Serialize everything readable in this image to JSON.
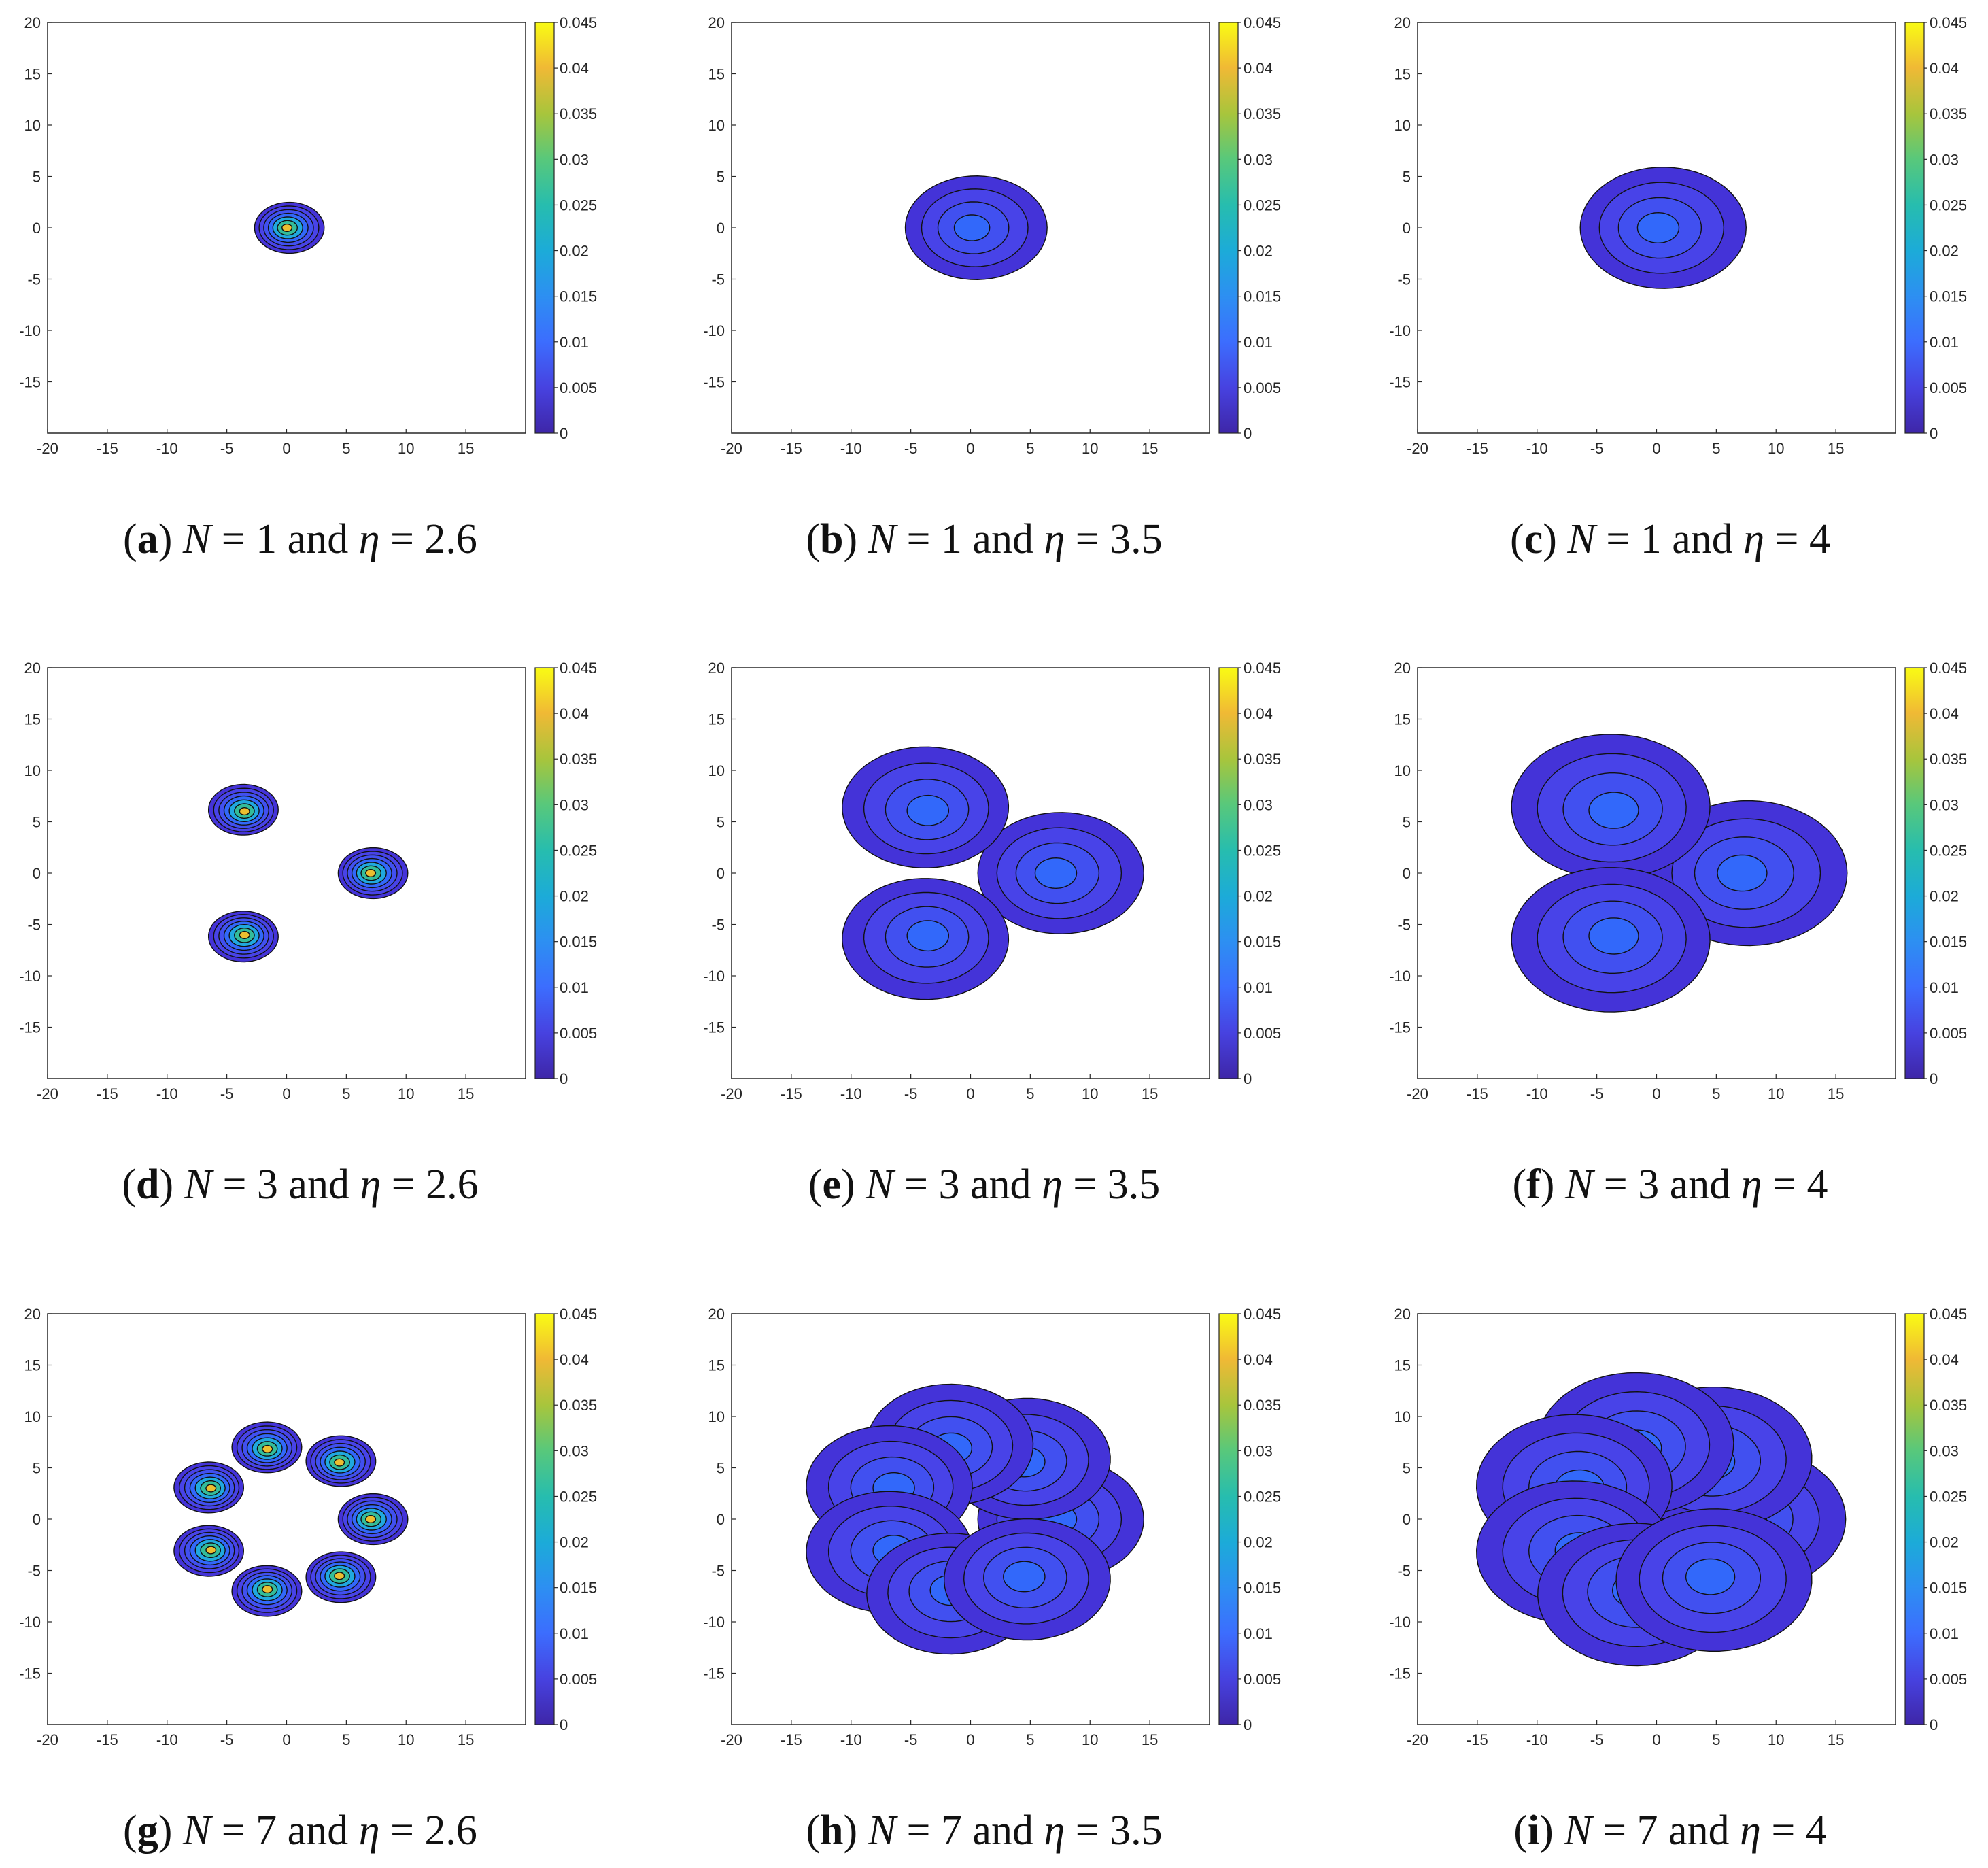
{
  "figure": {
    "type": "contour-grid",
    "colorbar": {
      "ticks": [
        "0",
        "0.005",
        "0.01",
        "0.015",
        "0.02",
        "0.025",
        "0.03",
        "0.035",
        "0.04",
        "0.045"
      ],
      "colormap": [
        "#3e26a8",
        "#4742e0",
        "#3c6dfe",
        "#2d8ff2",
        "#1cabd8",
        "#27bdae",
        "#58c87b",
        "#a8c53c",
        "#f0b935",
        "#f9fb14"
      ]
    },
    "contour_colors": [
      "#4433d8",
      "#4843e8",
      "#4150f0",
      "#3268fa",
      "#20a8df",
      "#33bc9a",
      "#ecbe30"
    ]
  },
  "chart_data": [
    {
      "type": "contour",
      "label": "a",
      "N": "1",
      "eta": "2.6",
      "xlim": [
        -20,
        20
      ],
      "ylim": [
        -20,
        20
      ],
      "xticks": [
        "-20",
        "-15",
        "-10",
        "-5",
        "0",
        "5",
        "10",
        "15"
      ],
      "yticks": [
        "20",
        "15",
        "10",
        "5",
        "0",
        "-5",
        "-10",
        "-15"
      ],
      "clim": [
        0,
        0.045
      ],
      "blob_radius": 2.6,
      "blob_levels": 7,
      "centers": [
        [
          0,
          0
        ]
      ]
    },
    {
      "type": "contour",
      "label": "b",
      "N": "1",
      "eta": "3.5",
      "xlim": [
        -20,
        20
      ],
      "ylim": [
        -20,
        20
      ],
      "xticks": [
        "-20",
        "-15",
        "-10",
        "-5",
        "0",
        "5",
        "10",
        "15"
      ],
      "yticks": [
        "20",
        "15",
        "10",
        "5",
        "0",
        "-5",
        "-10",
        "-15"
      ],
      "clim": [
        0,
        0.045
      ],
      "blob_radius": 5.3,
      "blob_levels": 4,
      "centers": [
        [
          0,
          0
        ]
      ]
    },
    {
      "type": "contour",
      "label": "c",
      "N": "1",
      "eta": "4",
      "xlim": [
        -20,
        20
      ],
      "ylim": [
        -20,
        20
      ],
      "xticks": [
        "-20",
        "-15",
        "-10",
        "-5",
        "0",
        "5",
        "10",
        "15"
      ],
      "yticks": [
        "20",
        "15",
        "10",
        "5",
        "0",
        "-5",
        "-10",
        "-15"
      ],
      "clim": [
        0,
        0.045
      ],
      "blob_radius": 6.2,
      "blob_levels": 4,
      "centers": [
        [
          0,
          0
        ]
      ]
    },
    {
      "type": "contour",
      "label": "d",
      "N": "3",
      "eta": "2.6",
      "xlim": [
        -20,
        20
      ],
      "ylim": [
        -20,
        20
      ],
      "xticks": [
        "-20",
        "-15",
        "-10",
        "-5",
        "0",
        "5",
        "10",
        "15"
      ],
      "yticks": [
        "20",
        "15",
        "10",
        "5",
        "0",
        "-5",
        "-10",
        "-15"
      ],
      "clim": [
        0,
        0.045
      ],
      "blob_radius": 2.6,
      "blob_levels": 7,
      "centers": [
        [
          7,
          0
        ],
        [
          -3.5,
          6
        ],
        [
          -3.5,
          -6
        ]
      ]
    },
    {
      "type": "contour",
      "label": "e",
      "N": "3",
      "eta": "3.5",
      "xlim": [
        -20,
        20
      ],
      "ylim": [
        -20,
        20
      ],
      "xticks": [
        "-20",
        "-15",
        "-10",
        "-5",
        "0",
        "5",
        "10",
        "15"
      ],
      "yticks": [
        "20",
        "15",
        "10",
        "5",
        "0",
        "-5",
        "-10",
        "-15"
      ],
      "clim": [
        0,
        0.045
      ],
      "blob_radius": 6.2,
      "blob_levels": 4,
      "centers": [
        [
          7,
          0
        ],
        [
          -3.5,
          6
        ],
        [
          -3.5,
          -6
        ]
      ]
    },
    {
      "type": "contour",
      "label": "f",
      "N": "3",
      "eta": "4",
      "xlim": [
        -20,
        20
      ],
      "ylim": [
        -20,
        20
      ],
      "xticks": [
        "-20",
        "-15",
        "-10",
        "-5",
        "0",
        "5",
        "10",
        "15"
      ],
      "yticks": [
        "20",
        "15",
        "10",
        "5",
        "0",
        "-5",
        "-10",
        "-15"
      ],
      "clim": [
        0,
        0.045
      ],
      "blob_radius": 7.4,
      "blob_levels": 4,
      "centers": [
        [
          7,
          0
        ],
        [
          -3.5,
          6
        ],
        [
          -3.5,
          -6
        ]
      ]
    },
    {
      "type": "contour",
      "label": "g",
      "N": "7",
      "eta": "2.6",
      "xlim": [
        -20,
        20
      ],
      "ylim": [
        -20,
        20
      ],
      "xticks": [
        "-20",
        "-15",
        "-10",
        "-5",
        "0",
        "5",
        "10",
        "15"
      ],
      "yticks": [
        "20",
        "15",
        "10",
        "5",
        "0",
        "-5",
        "-10",
        "-15"
      ],
      "clim": [
        0,
        0.045
      ],
      "blob_radius": 2.6,
      "blob_levels": 7,
      "centers": [
        [
          7,
          0
        ],
        [
          4.4,
          5.5
        ],
        [
          -1.6,
          6.8
        ],
        [
          -6.3,
          3
        ],
        [
          -6.3,
          -3
        ],
        [
          -1.6,
          -6.8
        ],
        [
          4.4,
          -5.5
        ]
      ]
    },
    {
      "type": "contour",
      "label": "h",
      "N": "7",
      "eta": "3.5",
      "xlim": [
        -20,
        20
      ],
      "ylim": [
        -20,
        20
      ],
      "xticks": [
        "-20",
        "-15",
        "-10",
        "-5",
        "0",
        "5",
        "10",
        "15"
      ],
      "yticks": [
        "20",
        "15",
        "10",
        "5",
        "0",
        "-5",
        "-10",
        "-15"
      ],
      "clim": [
        0,
        0.045
      ],
      "blob_radius": 6.2,
      "blob_levels": 4,
      "centers": [
        [
          7,
          0
        ],
        [
          4.4,
          5.5
        ],
        [
          -1.6,
          6.8
        ],
        [
          -6.3,
          3
        ],
        [
          -6.3,
          -3
        ],
        [
          -1.6,
          -6.8
        ],
        [
          4.4,
          -5.5
        ]
      ]
    },
    {
      "type": "contour",
      "label": "i",
      "N": "7",
      "eta": "4",
      "xlim": [
        -20,
        20
      ],
      "ylim": [
        -20,
        20
      ],
      "xticks": [
        "-20",
        "-15",
        "-10",
        "-5",
        "0",
        "5",
        "10",
        "15"
      ],
      "yticks": [
        "20",
        "15",
        "10",
        "5",
        "0",
        "-5",
        "-10",
        "-15"
      ],
      "clim": [
        0,
        0.045
      ],
      "blob_radius": 7.3,
      "blob_levels": 4,
      "centers": [
        [
          7,
          0
        ],
        [
          4.4,
          5.5
        ],
        [
          -1.6,
          6.8
        ],
        [
          -6.3,
          3
        ],
        [
          -6.3,
          -3
        ],
        [
          -1.6,
          -6.8
        ],
        [
          4.4,
          -5.5
        ]
      ]
    }
  ],
  "captions": [
    {
      "label": "a",
      "text": "N = 1 and η = 2.6"
    },
    {
      "label": "b",
      "text": "N = 1 and η = 3.5"
    },
    {
      "label": "c",
      "text": "N = 1 and η = 4"
    },
    {
      "label": "d",
      "text": "N = 3 and η = 2.6"
    },
    {
      "label": "e",
      "text": "N = 3 and η = 3.5"
    },
    {
      "label": "f",
      "text": "N = 3 and η = 4"
    },
    {
      "label": "g",
      "text": "N = 7 and η = 2.6"
    },
    {
      "label": "h",
      "text": "N = 7 and η = 3.5"
    },
    {
      "label": "i",
      "text": "N = 7 and η = 4"
    }
  ]
}
